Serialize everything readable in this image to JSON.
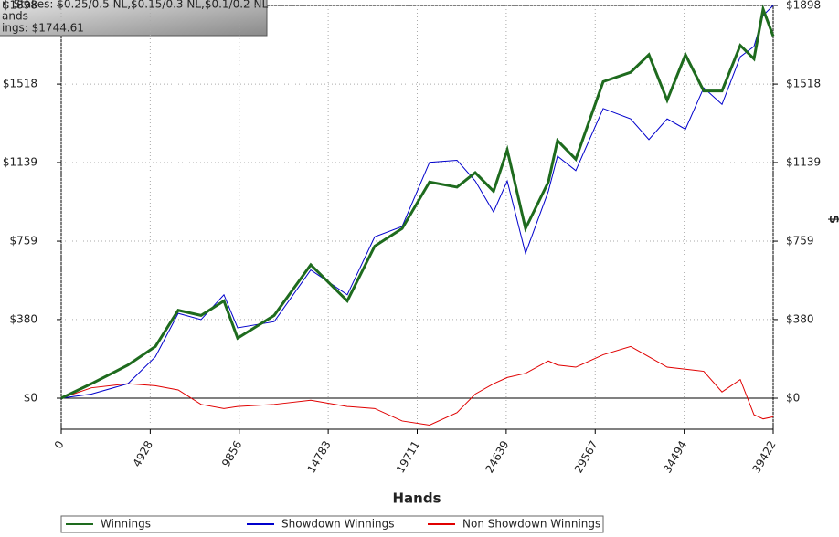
{
  "chart_data": {
    "type": "line",
    "title_lines": [
      "r: Stakes: $0.25/0.5 NL,$0.15/0.3 NL,$0.1/0.2 NL",
      "ands",
      "ings: $1744.61"
    ],
    "x_label": "Hands",
    "y2_label": "$",
    "x": [
      0,
      1670,
      3694,
      5212,
      6477,
      7742,
      9008,
      9767,
      11791,
      13816,
      15840,
      17358,
      18876,
      20394,
      21913,
      22924,
      23937,
      24696,
      25708,
      26973,
      27479,
      28491,
      30009,
      31528,
      32540,
      33552,
      34564,
      35576,
      36588,
      37600,
      38359,
      38865,
      39422
    ],
    "series": [
      {
        "name": "Winnings",
        "color": "#1e6b1e",
        "values": [
          0,
          70,
          160,
          250,
          425,
          400,
          470,
          290,
          400,
          645,
          470,
          735,
          820,
          1045,
          1020,
          1090,
          1000,
          1200,
          820,
          1045,
          1245,
          1155,
          1530,
          1575,
          1660,
          1440,
          1660,
          1485,
          1485,
          1705,
          1640,
          1880,
          1750
        ]
      },
      {
        "name": "Showdown Winnings",
        "color": "#0000cc",
        "values": [
          0,
          20,
          70,
          200,
          410,
          380,
          500,
          340,
          370,
          620,
          500,
          780,
          830,
          1140,
          1150,
          1050,
          900,
          1050,
          700,
          1000,
          1170,
          1100,
          1400,
          1350,
          1250,
          1350,
          1300,
          1500,
          1420,
          1650,
          1700,
          1850,
          1898
        ]
      },
      {
        "name": "Non Showdown Winnings",
        "color": "#e00000",
        "values": [
          0,
          50,
          70,
          60,
          40,
          -30,
          -50,
          -40,
          -30,
          -10,
          -40,
          -50,
          -110,
          -130,
          -70,
          20,
          70,
          100,
          120,
          180,
          160,
          150,
          210,
          250,
          200,
          150,
          140,
          130,
          30,
          90,
          -80,
          -100,
          -90
        ]
      }
    ],
    "xlim": [
      0,
      39422
    ],
    "xticks": [
      0,
      4928,
      9856,
      14783,
      19711,
      24639,
      29567,
      34494,
      39422
    ],
    "ylim": [
      -150,
      1898
    ],
    "yticks": [
      {
        "value": 0,
        "label": "$0"
      },
      {
        "value": 380,
        "label": "$380"
      },
      {
        "value": 759,
        "label": "$759"
      },
      {
        "value": 1139,
        "label": "$1139"
      },
      {
        "value": 1518,
        "label": "$1518"
      },
      {
        "value": 1898,
        "label": "$1898"
      }
    ],
    "grid": true
  }
}
